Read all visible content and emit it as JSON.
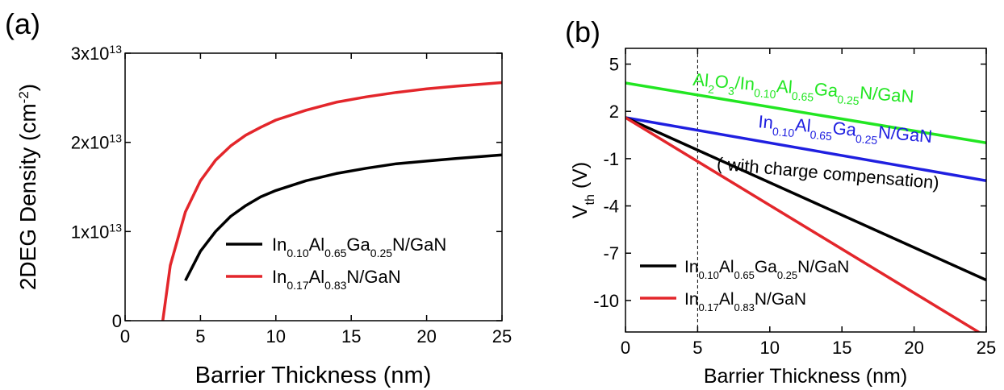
{
  "chart_data": [
    {
      "panel_label": "(a)",
      "type": "line",
      "xlabel": "Barrier Thickness (nm)",
      "ylabel": {
        "base": "2DEG Density (cm",
        "sup": "-2",
        "close": ")"
      },
      "xlim": [
        0,
        25
      ],
      "ylim": [
        0,
        30000000000000.0
      ],
      "xticks": [
        "0",
        "5",
        "10",
        "15",
        "20",
        "25"
      ],
      "yticks": [
        {
          "value": 0,
          "mant": "0",
          "exp": ""
        },
        {
          "value": 10000000000000.0,
          "mant": "1x10",
          "exp": "13"
        },
        {
          "value": 20000000000000.0,
          "mant": "2x10",
          "exp": "13"
        },
        {
          "value": 30000000000000.0,
          "mant": "3x10",
          "exp": "13"
        }
      ],
      "legend_position": "center-right",
      "series": [
        {
          "name": "In0.10Al0.65Ga0.25N/GaN",
          "name_parts": [
            [
              "In",
              ""
            ],
            [
              "0.10",
              "sub"
            ],
            [
              "Al",
              ""
            ],
            [
              "0.65",
              "sub"
            ],
            [
              "Ga",
              ""
            ],
            [
              "0.25",
              "sub"
            ],
            [
              "N/GaN",
              ""
            ]
          ],
          "color": "#000000",
          "x": [
            4,
            5,
            6,
            7,
            8,
            9,
            10,
            12,
            14,
            16,
            18,
            20,
            22,
            25
          ],
          "y": [
            4500000000000.0,
            7800000000000.0,
            10000000000000.0,
            11700000000000.0,
            12900000000000.0,
            13900000000000.0,
            14600000000000.0,
            15700000000000.0,
            16500000000000.0,
            17100000000000.0,
            17600000000000.0,
            17900000000000.0,
            18200000000000.0,
            18600000000000.0
          ]
        },
        {
          "name": "In0.17Al0.83N/GaN",
          "name_parts": [
            [
              "In",
              ""
            ],
            [
              "0.17",
              "sub"
            ],
            [
              "Al",
              ""
            ],
            [
              "0.83",
              "sub"
            ],
            [
              "N/GaN",
              ""
            ]
          ],
          "color": "#e3262b",
          "x": [
            2.5,
            3,
            4,
            5,
            6,
            7,
            8,
            9,
            10,
            12,
            14,
            16,
            18,
            20,
            22,
            25
          ],
          "y": [
            0,
            6200000000000.0,
            12200000000000.0,
            15700000000000.0,
            18000000000000.0,
            19600000000000.0,
            20800000000000.0,
            21700000000000.0,
            22500000000000.0,
            23600000000000.0,
            24500000000000.0,
            25100000000000.0,
            25600000000000.0,
            26000000000000.0,
            26300000000000.0,
            26700000000000.0
          ]
        }
      ]
    },
    {
      "panel_label": "(b)",
      "type": "line",
      "xlabel": "Barrier Thickness (nm)",
      "ylabel": {
        "base": "V",
        "sub": "th",
        "close": " (V)"
      },
      "xlim": [
        0,
        25
      ],
      "ylim": [
        -12,
        6
      ],
      "xticks": [
        "0",
        "5",
        "10",
        "15",
        "20",
        "25"
      ],
      "yticks": [
        "5",
        "2",
        "-1",
        "-4",
        "-7",
        "-10"
      ],
      "ytick_values": [
        5,
        2,
        -1,
        -4,
        -7,
        -10
      ],
      "grid": false,
      "vline_x": 5,
      "legend_position": "bottom-left",
      "series": [
        {
          "name": "Al2O3/In0.10Al0.65Ga0.25N/GaN",
          "name_parts": [
            [
              "Al",
              ""
            ],
            [
              "2",
              "sub"
            ],
            [
              "O",
              ""
            ],
            [
              "3",
              "sub"
            ],
            [
              "/In",
              ""
            ],
            [
              "0.10",
              "sub"
            ],
            [
              "Al",
              ""
            ],
            [
              "0.65",
              "sub"
            ],
            [
              "Ga",
              ""
            ],
            [
              "0.25",
              "sub"
            ],
            [
              "N/GaN",
              ""
            ]
          ],
          "color": "#22e622",
          "x": [
            0,
            25
          ],
          "y": [
            3.8,
            0.0
          ],
          "label_pos": [
            12.3,
            3.1
          ],
          "label_rotate": 4.5
        },
        {
          "name": "In0.10Al0.65Ga0.25N/GaN ( with charge compensation)",
          "name_parts": [
            [
              "In",
              ""
            ],
            [
              "0.10",
              "sub"
            ],
            [
              "Al",
              ""
            ],
            [
              "0.65",
              "sub"
            ],
            [
              "Ga",
              ""
            ],
            [
              "0.25",
              "sub"
            ],
            [
              "N/GaN",
              ""
            ]
          ],
          "extra_line": "( with charge compensation)",
          "color": "#1f1fe0",
          "x": [
            0,
            25
          ],
          "y": [
            1.6,
            -2.4
          ],
          "label_pos": [
            15.2,
            0.5
          ],
          "label2_pos": [
            14.0,
            -2.3
          ],
          "label_rotate": 5
        },
        {
          "name": "In0.10Al0.65Ga0.25N/GaN",
          "name_parts": [
            [
              "In",
              ""
            ],
            [
              "0.10",
              "sub"
            ],
            [
              "Al",
              ""
            ],
            [
              "0.65",
              "sub"
            ],
            [
              "Ga",
              ""
            ],
            [
              "0.25",
              "sub"
            ],
            [
              "N/GaN",
              ""
            ]
          ],
          "color": "#000000",
          "x": [
            0,
            25
          ],
          "y": [
            1.6,
            -8.7
          ]
        },
        {
          "name": "In0.17Al0.83N/GaN",
          "name_parts": [
            [
              "In",
              ""
            ],
            [
              "0.17",
              "sub"
            ],
            [
              "Al",
              ""
            ],
            [
              "0.83",
              "sub"
            ],
            [
              "N/GaN",
              ""
            ]
          ],
          "color": "#e3262b",
          "x": [
            0,
            25
          ],
          "y": [
            1.6,
            -12.3
          ]
        }
      ]
    }
  ]
}
